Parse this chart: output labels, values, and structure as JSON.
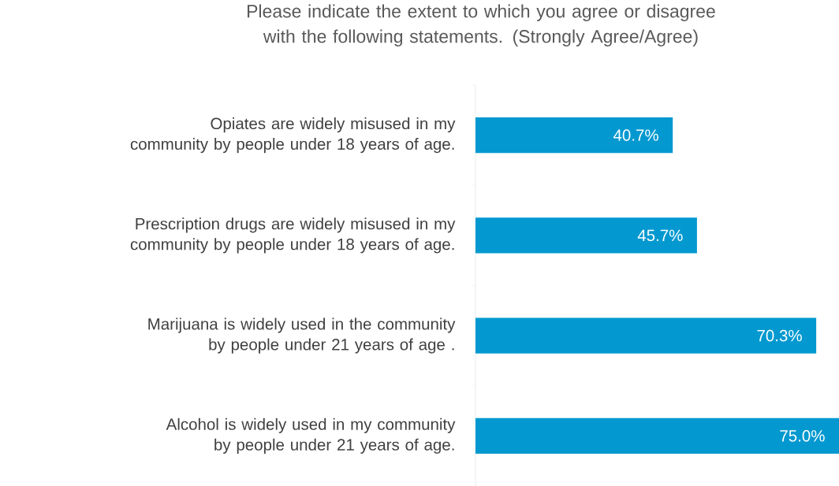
{
  "chart_data": {
    "type": "bar",
    "orientation": "horizontal",
    "title": "Please indicate the extent to which you agree or disagree with the following statements. (Strongly Agree/Agree)",
    "categories": [
      "Opiates are widely misused in my community by people under 18 years of age.",
      "Prescription drugs are widely misused in my community by people under 18 years of age.",
      "Marijuana is widely used in the community by people under 21 years of age .",
      "Alcohol is widely used in my community by people under 21 years of age."
    ],
    "values": [
      40.7,
      45.7,
      70.3,
      75.0
    ],
    "value_labels": [
      "40.7%",
      "45.7%",
      "70.3%",
      "75.0%"
    ],
    "color": "#0399d0"
  }
}
